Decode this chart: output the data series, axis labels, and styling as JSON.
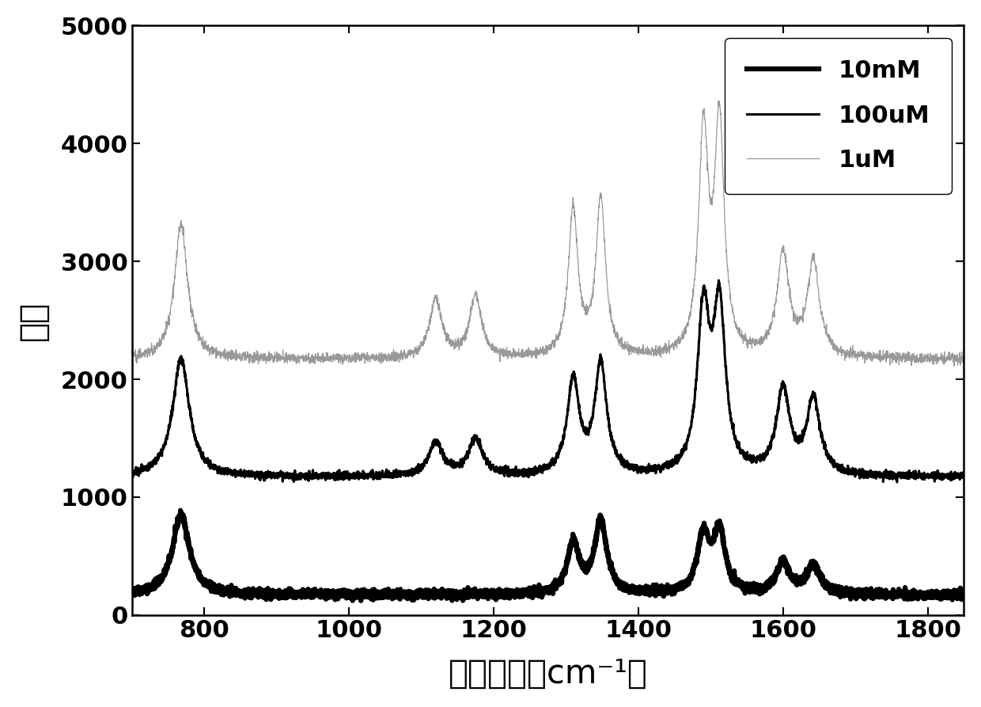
{
  "xlabel": "拉曼位移（cm⁻¹）",
  "ylabel": "强度",
  "xlim": [
    700,
    1850
  ],
  "ylim": [
    0,
    5000
  ],
  "yticks": [
    0,
    1000,
    2000,
    3000,
    4000,
    5000
  ],
  "xticks": [
    800,
    1000,
    1200,
    1400,
    1600,
    1800
  ],
  "legend_labels": [
    "10mM",
    "100uM",
    "1uM"
  ],
  "legend_linewidths": [
    4.5,
    2.2,
    0.9
  ],
  "legend_colors": [
    "#000000",
    "#000000",
    "#999999"
  ],
  "background_color": "#ffffff",
  "xlabel_fontsize": 30,
  "ylabel_fontsize": 30,
  "tick_fontsize": 22,
  "legend_fontsize": 22,
  "offsets": [
    0,
    1000,
    2000
  ],
  "base_level": 170,
  "noise_10mM": 18,
  "noise_100uM": 16,
  "noise_1uM": 22,
  "peaks_10mM": {
    "positions": [
      768,
      1310,
      1348,
      1490,
      1512,
      1600,
      1642
    ],
    "heights": [
      680,
      430,
      620,
      480,
      510,
      270,
      240
    ],
    "widths": [
      14,
      10,
      10,
      10,
      10,
      11,
      11
    ]
  },
  "peaks_100uM": {
    "positions": [
      768,
      1120,
      1175,
      1310,
      1348,
      1490,
      1512,
      1600,
      1642
    ],
    "heights": [
      1000,
      280,
      310,
      800,
      930,
      1350,
      1380,
      720,
      640
    ],
    "widths": [
      14,
      12,
      12,
      10,
      10,
      10,
      10,
      11,
      11
    ]
  },
  "peaks_1uM": {
    "positions": [
      768,
      1120,
      1175,
      1310,
      1348,
      1490,
      1512,
      1600,
      1642
    ],
    "heights": [
      1140,
      500,
      520,
      1250,
      1330,
      1870,
      1940,
      870,
      800
    ],
    "widths": [
      11,
      10,
      10,
      8,
      8,
      8,
      8,
      10,
      10
    ]
  }
}
